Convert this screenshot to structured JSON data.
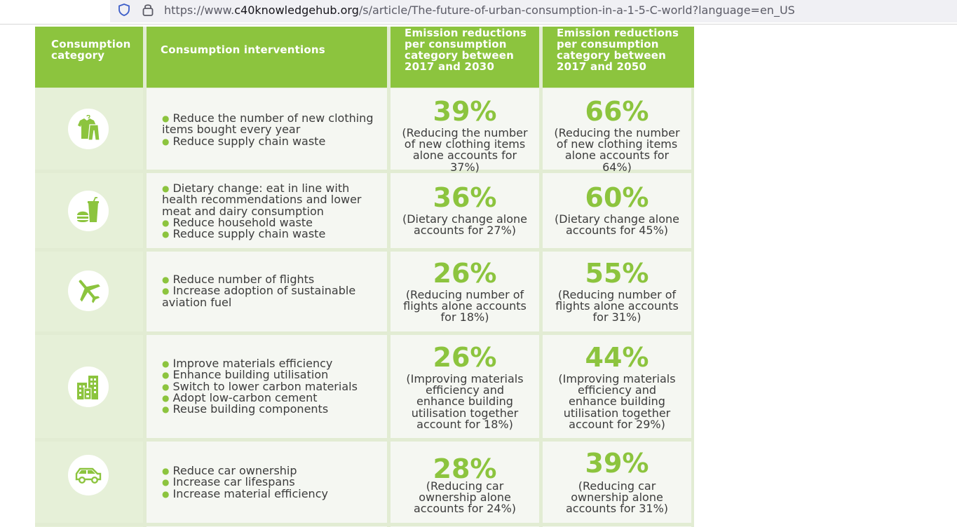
{
  "browser": {
    "url_prefix": "https://www.",
    "url_host": "c40knowledgehub.org",
    "url_path": "/s/article/The-future-of-urban-consumption-in-a-1-5-C-world?language=en_US"
  },
  "table": {
    "headers": {
      "category": "Consumption category",
      "interventions": "Consumption interventions",
      "reduction_2030": "Emission reductions per consumption category between 2017 and 2030",
      "reduction_2050": "Emission reductions per consumption category between 2017 and 2050"
    },
    "rows": [
      {
        "icon": "clothing-icon",
        "interventions": [
          "Reduce the number of new clothing items bought every year",
          "Reduce supply chain waste"
        ],
        "pct_2030": "39%",
        "note_2030": "(Reducing the number of new clothing items alone accounts for 37%)",
        "pct_2050": "66%",
        "note_2050": "(Reducing the number of new clothing items alone accounts for 64%)"
      },
      {
        "icon": "food-drink-icon",
        "interventions": [
          "Dietary change: eat in line with health recommendations and lower meat and dairy consumption",
          "Reduce household waste",
          "Reduce supply chain waste"
        ],
        "pct_2030": "36%",
        "note_2030": "(Dietary change alone accounts for 27%)",
        "pct_2050": "60%",
        "note_2050": "(Dietary change alone accounts for 45%)"
      },
      {
        "icon": "airplane-icon",
        "interventions": [
          "Reduce number of flights",
          "Increase adoption of sustainable aviation fuel"
        ],
        "pct_2030": "26%",
        "note_2030": "(Reducing number of flights alone accounts for 18%)",
        "pct_2050": "55%",
        "note_2050": "(Reducing number of flights alone accounts for 31%)"
      },
      {
        "icon": "buildings-icon",
        "interventions": [
          "Improve materials efficiency",
          "Enhance building utilisation",
          "Switch to lower carbon materials",
          "Adopt low-carbon cement",
          "Reuse building components"
        ],
        "pct_2030": "26%",
        "note_2030": "(Improving materials efficiency and enhance building utilisation together account for 18%)",
        "pct_2050": "44%",
        "note_2050": "(Improving materials efficiency and enhance building utilisation together account for 29%)"
      },
      {
        "icon": "car-icon",
        "interventions": [
          "Reduce car ownership",
          "Increase car lifespans",
          "Increase material efficiency"
        ],
        "pct_2030": "28%",
        "note_2030": "(Reducing car ownership alone accounts for 24%)",
        "pct_2050": "39%",
        "note_2050": "(Reducing car ownership alone accounts for 31%)"
      }
    ]
  },
  "colors": {
    "accent": "#8cc43e",
    "category_bg": "#e6f0d8",
    "cell_bg": "#f5f7f2"
  }
}
